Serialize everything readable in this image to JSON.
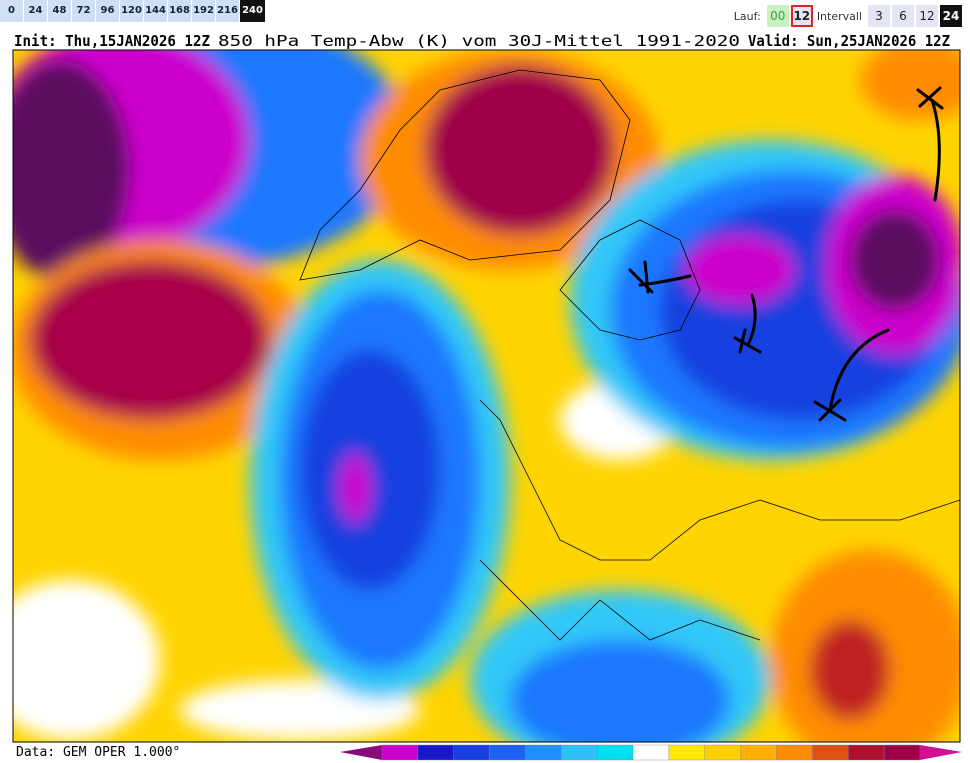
{
  "toolbar": {
    "hours": [
      0,
      24,
      48,
      72,
      96,
      120,
      144,
      168,
      192,
      216,
      240
    ],
    "run_label": "Lauf:",
    "runs": [
      "00",
      "12"
    ],
    "interval_label": "Intervall",
    "intervals": [
      3,
      6,
      12,
      24
    ]
  },
  "header": {
    "init": "Init: Thu,15JAN2026 12Z",
    "title": "850 hPa Temp-Abw (K) vom 30J-Mittel 1991-2020",
    "valid": "Valid: Sun,25JAN2026 12Z"
  },
  "footer": {
    "source": "Data: GEM OPER 1.000°"
  }
}
